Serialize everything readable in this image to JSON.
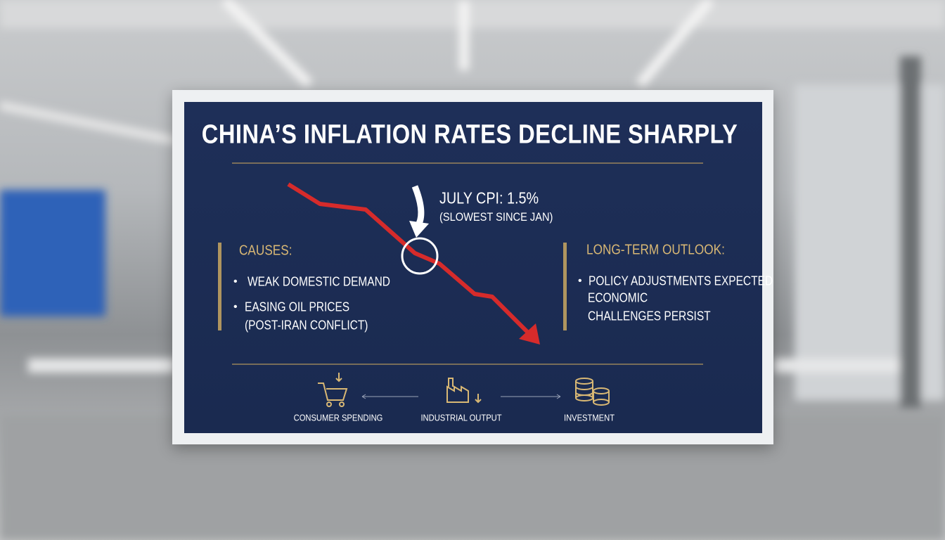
{
  "title": "CHINA’S INFLATION RATES DECLINE SHARPLY",
  "callout": {
    "headline": "JULY CPI: 1.5%",
    "note": "(SLOWEST SINCE JAN)"
  },
  "causes": {
    "heading": "CAUSES:",
    "items": [
      [
        "WEAK DOMESTIC DEMAND"
      ],
      [
        "EASING OIL PRICES",
        "(POST-IRAN CONFLICT)"
      ]
    ]
  },
  "outlook": {
    "heading": "LONG-TERM OUTLOOK:",
    "items": [
      [
        "POLICY ADJUSTMENTS EXPECTED"
      ],
      [
        "ECONOMIC",
        "CHALLENGES PERSIST"
      ]
    ]
  },
  "footer": [
    "CONSUMER SPENDING",
    "INDUSTRIAL OUTPUT",
    "INVESTMENT"
  ]
}
